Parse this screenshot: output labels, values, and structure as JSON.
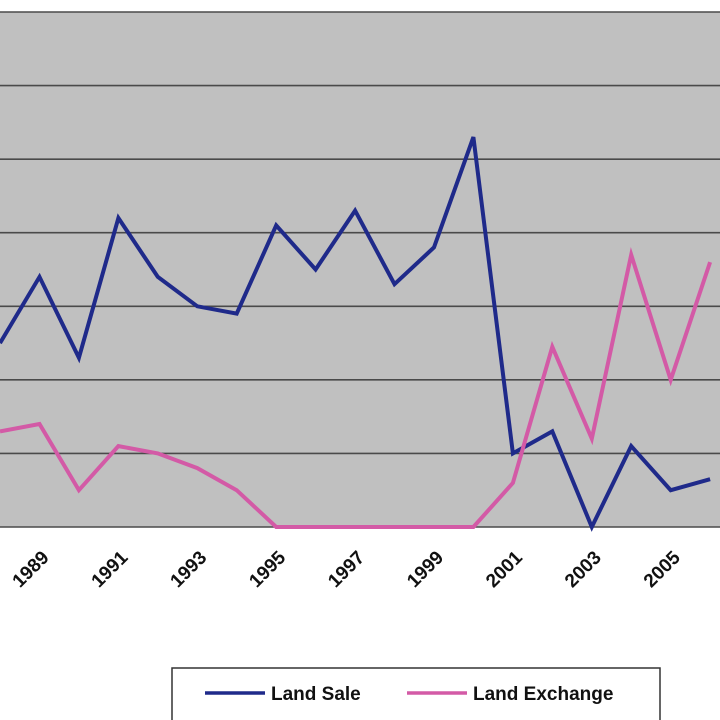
{
  "chart_data": {
    "type": "line",
    "xlabel": "",
    "ylabel": "",
    "x": [
      1988,
      1989,
      1990,
      1991,
      1992,
      1993,
      1994,
      1995,
      1996,
      1997,
      1998,
      1999,
      2000,
      2001,
      2002,
      2003,
      2004,
      2005,
      2006
    ],
    "xlim": [
      1988,
      2006.25
    ],
    "ylim": [
      0,
      7
    ],
    "grid": true,
    "tick_labels": [
      "1989",
      "1991",
      "1993",
      "1995",
      "1997",
      "1999",
      "2001",
      "2003",
      "2005"
    ],
    "series": [
      {
        "name": "Land Sale",
        "color": "#1f2a8a",
        "values": [
          2.5,
          3.4,
          2.3,
          4.2,
          3.4,
          3.0,
          2.9,
          4.1,
          3.5,
          4.3,
          3.3,
          3.8,
          5.3,
          1.0,
          1.3,
          0.0,
          1.1,
          0.5,
          0.65
        ]
      },
      {
        "name": "Land Exchange",
        "color": "#d35aa6",
        "values": [
          1.3,
          1.4,
          0.5,
          1.1,
          1.0,
          0.8,
          0.5,
          0.0,
          0.0,
          0.0,
          0.0,
          0.0,
          0.0,
          0.6,
          2.45,
          1.2,
          3.7,
          2.0,
          3.6
        ]
      }
    ],
    "legend": {
      "position": "bottom",
      "items": [
        {
          "label": "Land Sale",
          "color": "#1f2a8a"
        },
        {
          "label": "Land Exchange",
          "color": "#d35aa6"
        }
      ]
    }
  },
  "colors": {
    "plot_background": "#c0c0c0",
    "gridline": "#4a4a4a"
  }
}
